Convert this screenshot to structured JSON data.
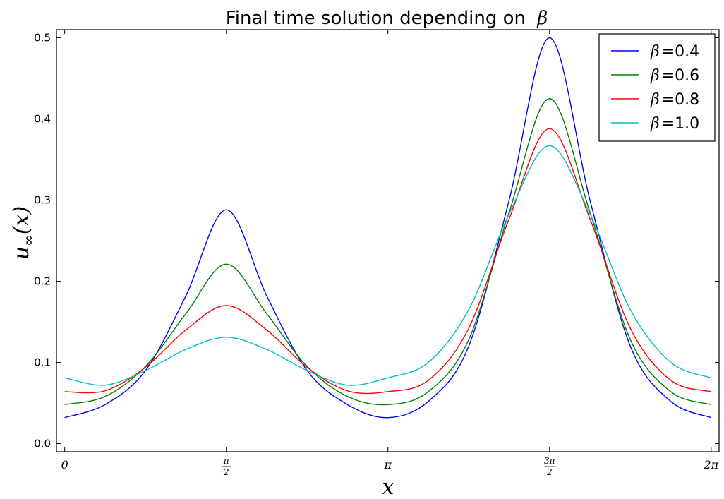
{
  "chart_data": {
    "type": "line",
    "title": "Final time solution depending on β",
    "title_parts": {
      "text": "Final time solution depending on",
      "symbol": "β"
    },
    "xlabel": "x",
    "ylabel": "u∞(x)",
    "ylabel_parts": {
      "u": "u",
      "sub": "∞",
      "rest": "(x)"
    },
    "xlim": [
      -0.08,
      6.36
    ],
    "ylim": [
      -0.01,
      0.51
    ],
    "x_ticks": [
      {
        "value": 0,
        "label": "0",
        "kind": "plain"
      },
      {
        "value": 1.5708,
        "label": "π/2",
        "kind": "frac",
        "num": "π",
        "den": "2"
      },
      {
        "value": 3.1416,
        "label": "π",
        "kind": "plain"
      },
      {
        "value": 4.7124,
        "label": "3π/2",
        "kind": "frac",
        "num": "3π",
        "den": "2"
      },
      {
        "value": 6.2832,
        "label": "2π",
        "kind": "plain"
      }
    ],
    "y_ticks": [
      {
        "value": 0.0,
        "label": "0.0"
      },
      {
        "value": 0.1,
        "label": "0.1"
      },
      {
        "value": 0.2,
        "label": "0.2"
      },
      {
        "value": 0.3,
        "label": "0.3"
      },
      {
        "value": 0.4,
        "label": "0.4"
      },
      {
        "value": 0.5,
        "label": "0.5"
      }
    ],
    "legend_position": "top-right",
    "x": [
      0.0,
      0.3927,
      0.7854,
      1.1781,
      1.5708,
      1.9635,
      2.3562,
      2.7489,
      3.1416,
      3.5343,
      3.927,
      4.3197,
      4.7124,
      5.1051,
      5.4978,
      5.8905,
      6.2832
    ],
    "series": [
      {
        "name": "β = 0.4",
        "legend_symbol": "β",
        "legend_value": "0.4",
        "color": "#0000ff",
        "values": [
          0.032,
          0.048,
          0.09,
          0.182,
          0.288,
          0.182,
          0.09,
          0.048,
          0.032,
          0.052,
          0.12,
          0.3,
          0.5,
          0.3,
          0.12,
          0.052,
          0.032
        ]
      },
      {
        "name": "β = 0.6",
        "legend_symbol": "β",
        "legend_value": "0.6",
        "color": "#008000",
        "values": [
          0.048,
          0.058,
          0.095,
          0.16,
          0.221,
          0.16,
          0.095,
          0.058,
          0.048,
          0.064,
          0.128,
          0.285,
          0.425,
          0.285,
          0.128,
          0.064,
          0.048
        ]
      },
      {
        "name": "β = 0.8",
        "legend_symbol": "β",
        "legend_value": "0.8",
        "color": "#ff0000",
        "values": [
          0.064,
          0.065,
          0.094,
          0.14,
          0.17,
          0.14,
          0.094,
          0.065,
          0.064,
          0.078,
          0.142,
          0.277,
          0.388,
          0.277,
          0.142,
          0.078,
          0.064
        ]
      },
      {
        "name": "β = 1.0",
        "legend_symbol": "β",
        "legend_value": "1.0",
        "color": "#00bfbf",
        "values": [
          0.081,
          0.072,
          0.09,
          0.116,
          0.131,
          0.116,
          0.09,
          0.072,
          0.081,
          0.1,
          0.165,
          0.283,
          0.367,
          0.283,
          0.165,
          0.1,
          0.081
        ]
      }
    ]
  }
}
